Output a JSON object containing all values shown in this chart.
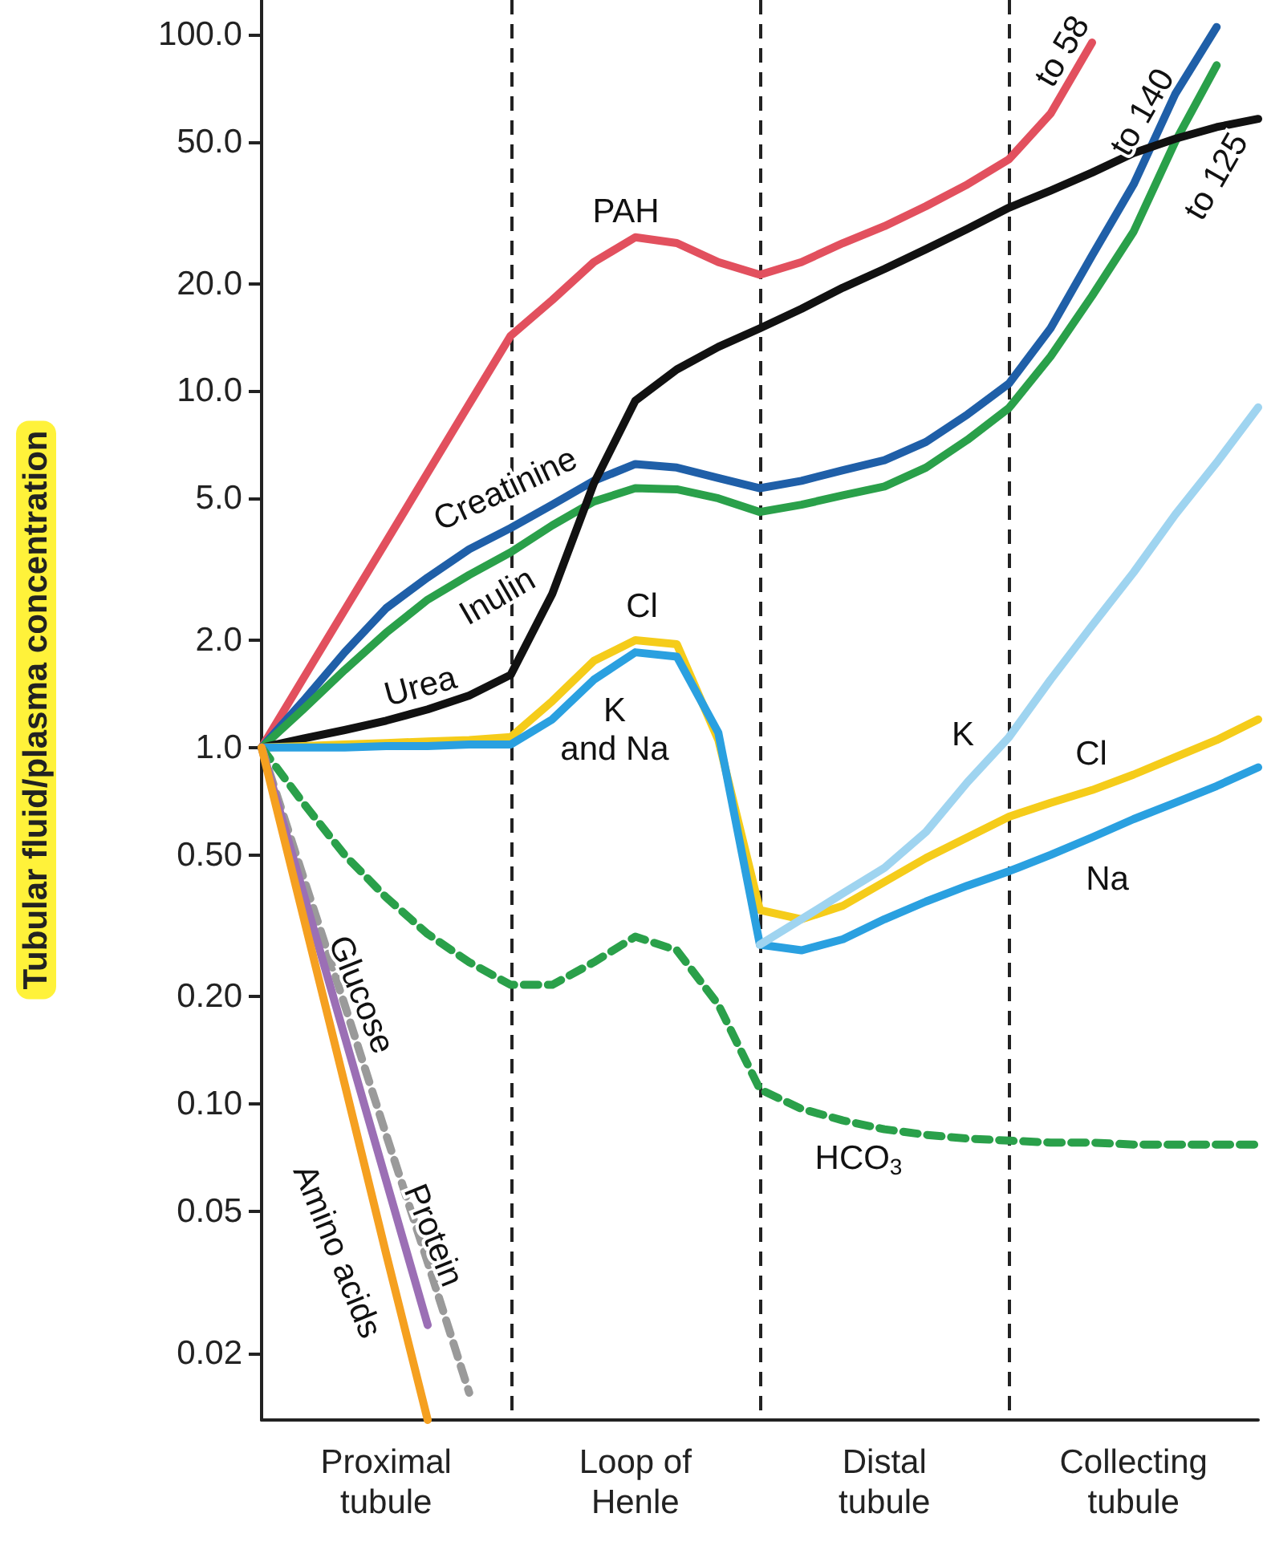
{
  "chart_data": {
    "type": "line",
    "ylabel": "Tubular fluid/plasma concentration",
    "log": "y",
    "grid": "x",
    "marker": "none",
    "line_style": "solid",
    "ylim": [
      0.013,
      125
    ],
    "yticks": [
      {
        "value": 100,
        "label": "100.0"
      },
      {
        "value": 50,
        "label": "50.0"
      },
      {
        "value": 20,
        "label": "20.0"
      },
      {
        "value": 10,
        "label": "10.0"
      },
      {
        "value": 5,
        "label": "5.0"
      },
      {
        "value": 2,
        "label": "2.0"
      },
      {
        "value": 1,
        "label": "1.0"
      },
      {
        "value": 0.5,
        "label": "0.50"
      },
      {
        "value": 0.2,
        "label": "0.20"
      },
      {
        "value": 0.1,
        "label": "0.10"
      },
      {
        "value": 0.05,
        "label": "0.05"
      },
      {
        "value": 0.02,
        "label": "0.02"
      }
    ],
    "categories": [
      null,
      null,
      null,
      "Proximal\ntubule",
      null,
      null,
      null,
      null,
      null,
      "Loop of\nHenle",
      null,
      null,
      null,
      null,
      null,
      "Distal\ntubule",
      null,
      null,
      null,
      null,
      null,
      "Collecting\ntubule",
      null,
      null,
      null
    ],
    "series": [
      {
        "color": "#e2505e",
        "values": [
          1,
          1.56,
          2.43,
          3.78,
          5.9,
          9.2,
          14.3,
          18,
          23,
          27,
          26,
          23,
          21.2,
          23,
          26,
          29,
          33,
          38,
          44.7,
          60,
          95,
          null,
          null,
          null,
          null
        ]
      },
      {
        "color": "#1f5fa8",
        "values": [
          1,
          1.35,
          1.85,
          2.46,
          3.0,
          3.6,
          4.13,
          4.8,
          5.6,
          6.24,
          6.1,
          5.7,
          5.34,
          5.6,
          6.0,
          6.4,
          7.2,
          8.6,
          10.5,
          15,
          24,
          38,
          68,
          105,
          null
        ]
      },
      {
        "color": "#2aa04a",
        "values": [
          1,
          1.28,
          1.65,
          2.1,
          2.6,
          3.05,
          3.53,
          4.2,
          4.9,
          5.34,
          5.3,
          5.0,
          4.58,
          4.8,
          5.1,
          5.4,
          6.1,
          7.3,
          8.97,
          12.5,
          18.5,
          28,
          50,
          82,
          null
        ]
      },
      {
        "color": "#111111",
        "values": [
          1,
          1.06,
          1.12,
          1.19,
          1.28,
          1.4,
          1.6,
          2.7,
          5.5,
          9.4,
          11.5,
          13.3,
          15,
          17,
          19.5,
          22,
          25,
          28.5,
          32.7,
          36.5,
          41,
          46.5,
          51,
          55,
          58
        ]
      },
      {
        "color": "#f5cc1a",
        "values": [
          1,
          1.01,
          1.02,
          1.03,
          1.04,
          1.05,
          1.07,
          1.35,
          1.75,
          2.0,
          1.95,
          1.05,
          0.35,
          0.33,
          0.36,
          0.42,
          0.49,
          0.56,
          0.64,
          0.7,
          0.76,
          0.84,
          0.94,
          1.05,
          1.2
        ]
      },
      {
        "color": "#2aa0e0",
        "values": [
          1,
          1,
          1,
          1.01,
          1.01,
          1.02,
          1.02,
          1.2,
          1.55,
          1.85,
          1.8,
          1.1,
          0.28,
          0.27,
          0.29,
          0.33,
          0.37,
          0.41,
          0.45,
          0.5,
          0.56,
          0.63,
          0.7,
          0.78,
          0.88
        ]
      },
      {
        "color": "#9fd4f0",
        "values": [
          null,
          null,
          null,
          null,
          null,
          null,
          null,
          null,
          null,
          null,
          null,
          null,
          0.28,
          0.33,
          0.39,
          0.46,
          0.58,
          0.8,
          1.07,
          1.55,
          2.2,
          3.1,
          4.5,
          6.3,
          9
        ]
      },
      {
        "color": "#2aa04a",
        "line_style": "dashed",
        "values": [
          1,
          0.7,
          0.5,
          0.38,
          0.3,
          0.25,
          0.216,
          0.216,
          0.25,
          0.295,
          0.27,
          0.19,
          0.11,
          0.097,
          0.09,
          0.085,
          0.082,
          0.08,
          0.079,
          0.078,
          0.078,
          0.077,
          0.077,
          0.077,
          0.077
        ]
      },
      {
        "color": "#9a9a9a",
        "line_style": "dashed",
        "values": [
          1,
          0.435,
          0.19,
          0.082,
          0.036,
          0.0155,
          null,
          null,
          null,
          null,
          null,
          null,
          null,
          null,
          null,
          null,
          null,
          null,
          null,
          null,
          null,
          null,
          null,
          null,
          null
        ]
      },
      {
        "color": "#9b6fb5",
        "values": [
          1,
          0.393,
          0.155,
          0.061,
          0.024,
          null,
          null,
          null,
          null,
          null,
          null,
          null,
          null,
          null,
          null,
          null,
          null,
          null,
          null,
          null,
          null,
          null,
          null,
          null,
          null
        ]
      },
      {
        "color": "#f5a020",
        "values": [
          1,
          0.338,
          0.114,
          0.038,
          0.013,
          null,
          null,
          null,
          null,
          null,
          null,
          null,
          null,
          null,
          null,
          null,
          null,
          null,
          null,
          null,
          null,
          null,
          null,
          null,
          null
        ]
      }
    ],
    "annotations": [
      "PAH",
      "Creatinine",
      "Inulin",
      "Urea",
      "Cl",
      "K\nand Na",
      "K",
      "Cl",
      "Na",
      "HCO$_{3}$",
      "Glucose",
      "Protein",
      "Amino acids",
      "to 58",
      "to 140",
      "to 125"
    ]
  }
}
